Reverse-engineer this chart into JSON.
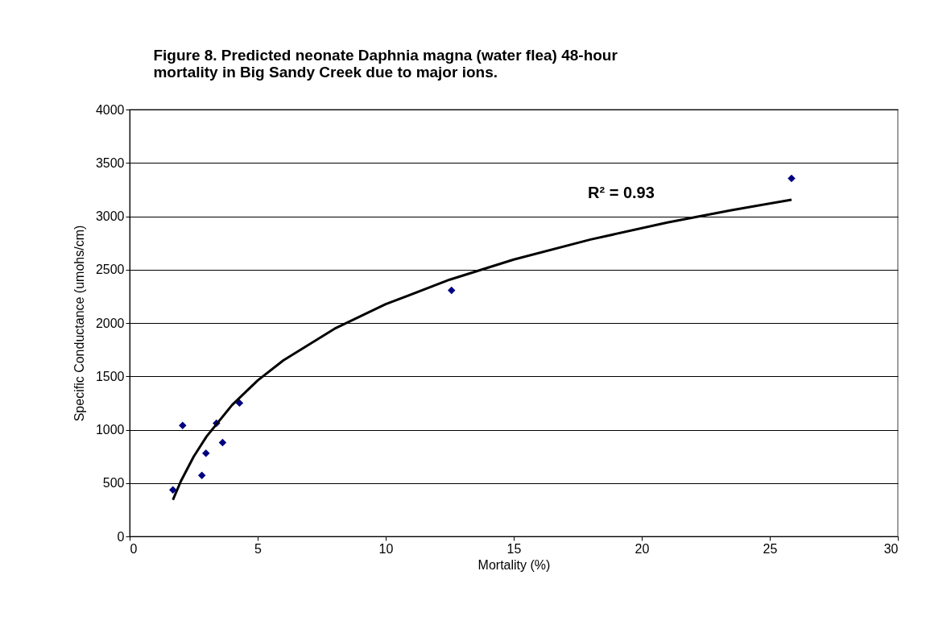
{
  "chart_data": {
    "type": "scatter",
    "title": "Figure 8.  Predicted neonate Daphnia magna (water flea)  48-hour mortality in Big Sandy Creek due to major ions.",
    "xlabel": "Mortality (%)",
    "ylabel": "Specific Conductance (umohs/cm)",
    "annotations": [
      "R² = 0.93"
    ],
    "xlim": [
      0,
      30
    ],
    "xticks": [
      0,
      5,
      10,
      15,
      20,
      25,
      30
    ],
    "ylim": [
      0,
      4000
    ],
    "yticks": [
      0,
      500,
      1000,
      1500,
      2000,
      2500,
      3000,
      3500,
      4000
    ],
    "grid": "y",
    "series": [
      {
        "marker": "diamond",
        "color": "#000080",
        "x": [
          1.69,
          2.07,
          2.82,
          2.98,
          3.39,
          3.63,
          4.29,
          12.57,
          25.85
        ],
        "values": [
          435,
          1040,
          572,
          780,
          1060,
          880,
          1250,
          2306,
          3355
        ]
      },
      {
        "type": "line",
        "marker": "none",
        "color": "#000000",
        "line_style": "solid",
        "x": [
          1.69,
          2,
          2.5,
          3,
          4,
          5,
          6,
          8,
          10,
          12.5,
          15,
          18,
          21,
          23.5,
          25.85
        ],
        "values": [
          343,
          517,
          747,
          935,
          1231,
          1461,
          1649,
          1946,
          2176,
          2406,
          2594,
          2782,
          2941,
          3057,
          3155
        ]
      }
    ]
  }
}
